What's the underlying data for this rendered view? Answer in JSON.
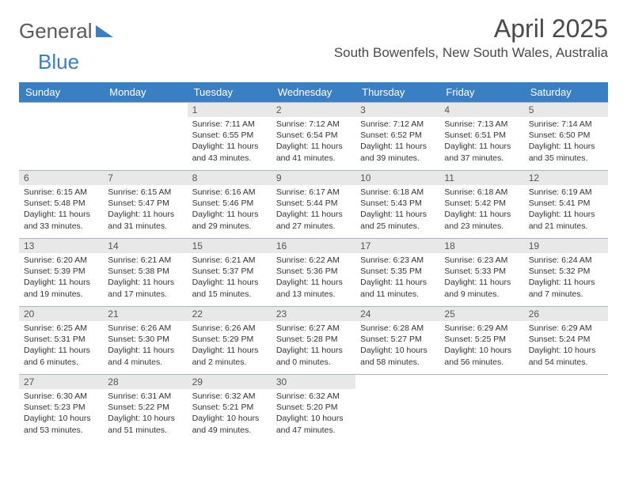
{
  "logo": {
    "part1": "General",
    "part2": "Blue"
  },
  "header": {
    "title": "April 2025",
    "subtitle": "South Bowenfels, New South Wales, Australia"
  },
  "colors": {
    "header_bg": "#3a7fc4",
    "header_text": "#ffffff",
    "daynum_bg": "#e8e8e8",
    "border": "#a9b7c4",
    "title_color": "#4a4a4a",
    "body_text": "#333333"
  },
  "calendar": {
    "day_labels": [
      "Sunday",
      "Monday",
      "Tuesday",
      "Wednesday",
      "Thursday",
      "Friday",
      "Saturday"
    ],
    "weeks": [
      [
        null,
        null,
        {
          "n": "1",
          "sunrise": "7:11 AM",
          "sunset": "6:55 PM",
          "dl_h": "11",
          "dl_m": "43"
        },
        {
          "n": "2",
          "sunrise": "7:12 AM",
          "sunset": "6:54 PM",
          "dl_h": "11",
          "dl_m": "41"
        },
        {
          "n": "3",
          "sunrise": "7:12 AM",
          "sunset": "6:52 PM",
          "dl_h": "11",
          "dl_m": "39"
        },
        {
          "n": "4",
          "sunrise": "7:13 AM",
          "sunset": "6:51 PM",
          "dl_h": "11",
          "dl_m": "37"
        },
        {
          "n": "5",
          "sunrise": "7:14 AM",
          "sunset": "6:50 PM",
          "dl_h": "11",
          "dl_m": "35"
        }
      ],
      [
        {
          "n": "6",
          "sunrise": "6:15 AM",
          "sunset": "5:48 PM",
          "dl_h": "11",
          "dl_m": "33"
        },
        {
          "n": "7",
          "sunrise": "6:15 AM",
          "sunset": "5:47 PM",
          "dl_h": "11",
          "dl_m": "31"
        },
        {
          "n": "8",
          "sunrise": "6:16 AM",
          "sunset": "5:46 PM",
          "dl_h": "11",
          "dl_m": "29"
        },
        {
          "n": "9",
          "sunrise": "6:17 AM",
          "sunset": "5:44 PM",
          "dl_h": "11",
          "dl_m": "27"
        },
        {
          "n": "10",
          "sunrise": "6:18 AM",
          "sunset": "5:43 PM",
          "dl_h": "11",
          "dl_m": "25"
        },
        {
          "n": "11",
          "sunrise": "6:18 AM",
          "sunset": "5:42 PM",
          "dl_h": "11",
          "dl_m": "23"
        },
        {
          "n": "12",
          "sunrise": "6:19 AM",
          "sunset": "5:41 PM",
          "dl_h": "11",
          "dl_m": "21"
        }
      ],
      [
        {
          "n": "13",
          "sunrise": "6:20 AM",
          "sunset": "5:39 PM",
          "dl_h": "11",
          "dl_m": "19"
        },
        {
          "n": "14",
          "sunrise": "6:21 AM",
          "sunset": "5:38 PM",
          "dl_h": "11",
          "dl_m": "17"
        },
        {
          "n": "15",
          "sunrise": "6:21 AM",
          "sunset": "5:37 PM",
          "dl_h": "11",
          "dl_m": "15"
        },
        {
          "n": "16",
          "sunrise": "6:22 AM",
          "sunset": "5:36 PM",
          "dl_h": "11",
          "dl_m": "13"
        },
        {
          "n": "17",
          "sunrise": "6:23 AM",
          "sunset": "5:35 PM",
          "dl_h": "11",
          "dl_m": "11"
        },
        {
          "n": "18",
          "sunrise": "6:23 AM",
          "sunset": "5:33 PM",
          "dl_h": "11",
          "dl_m": "9"
        },
        {
          "n": "19",
          "sunrise": "6:24 AM",
          "sunset": "5:32 PM",
          "dl_h": "11",
          "dl_m": "7"
        }
      ],
      [
        {
          "n": "20",
          "sunrise": "6:25 AM",
          "sunset": "5:31 PM",
          "dl_h": "11",
          "dl_m": "6"
        },
        {
          "n": "21",
          "sunrise": "6:26 AM",
          "sunset": "5:30 PM",
          "dl_h": "11",
          "dl_m": "4"
        },
        {
          "n": "22",
          "sunrise": "6:26 AM",
          "sunset": "5:29 PM",
          "dl_h": "11",
          "dl_m": "2"
        },
        {
          "n": "23",
          "sunrise": "6:27 AM",
          "sunset": "5:28 PM",
          "dl_h": "11",
          "dl_m": "0"
        },
        {
          "n": "24",
          "sunrise": "6:28 AM",
          "sunset": "5:27 PM",
          "dl_h": "10",
          "dl_m": "58"
        },
        {
          "n": "25",
          "sunrise": "6:29 AM",
          "sunset": "5:25 PM",
          "dl_h": "10",
          "dl_m": "56"
        },
        {
          "n": "26",
          "sunrise": "6:29 AM",
          "sunset": "5:24 PM",
          "dl_h": "10",
          "dl_m": "54"
        }
      ],
      [
        {
          "n": "27",
          "sunrise": "6:30 AM",
          "sunset": "5:23 PM",
          "dl_h": "10",
          "dl_m": "53"
        },
        {
          "n": "28",
          "sunrise": "6:31 AM",
          "sunset": "5:22 PM",
          "dl_h": "10",
          "dl_m": "51"
        },
        {
          "n": "29",
          "sunrise": "6:32 AM",
          "sunset": "5:21 PM",
          "dl_h": "10",
          "dl_m": "49"
        },
        {
          "n": "30",
          "sunrise": "6:32 AM",
          "sunset": "5:20 PM",
          "dl_h": "10",
          "dl_m": "47"
        },
        null,
        null,
        null
      ]
    ],
    "labels": {
      "sunrise": "Sunrise:",
      "sunset": "Sunset:",
      "daylight": "Daylight:",
      "hours_word": "hours",
      "and_word": "and",
      "minutes_word": "minutes."
    }
  }
}
